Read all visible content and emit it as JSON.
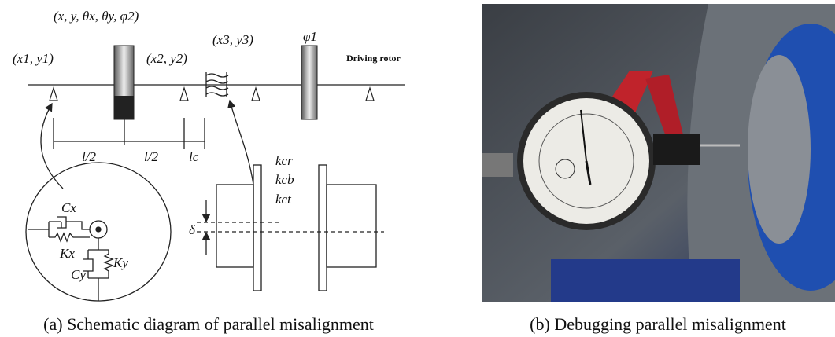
{
  "schematic": {
    "labels": {
      "disk_coords": "(x, y, θx, θy, φ2)",
      "support1": "(x1, y1)",
      "support2": "(x2, y2)",
      "coupling": "(x3, y3)",
      "disk2": "φ1",
      "driving_rotor": "Driving rotor",
      "half_span_1": "l/2",
      "half_span_2": "l/2",
      "coupling_length": "lc",
      "k_radial": "kcr",
      "k_bending": "kcb",
      "k_torsional": "kct",
      "offset": "δ",
      "damping_x": "Cx",
      "stiffness_x": "Kx",
      "damping_y": "Cy",
      "stiffness_y": "Ky"
    }
  },
  "captions": {
    "a": "(a) Schematic diagram of parallel misalignment",
    "b": "(b) Debugging parallel misalignment"
  }
}
